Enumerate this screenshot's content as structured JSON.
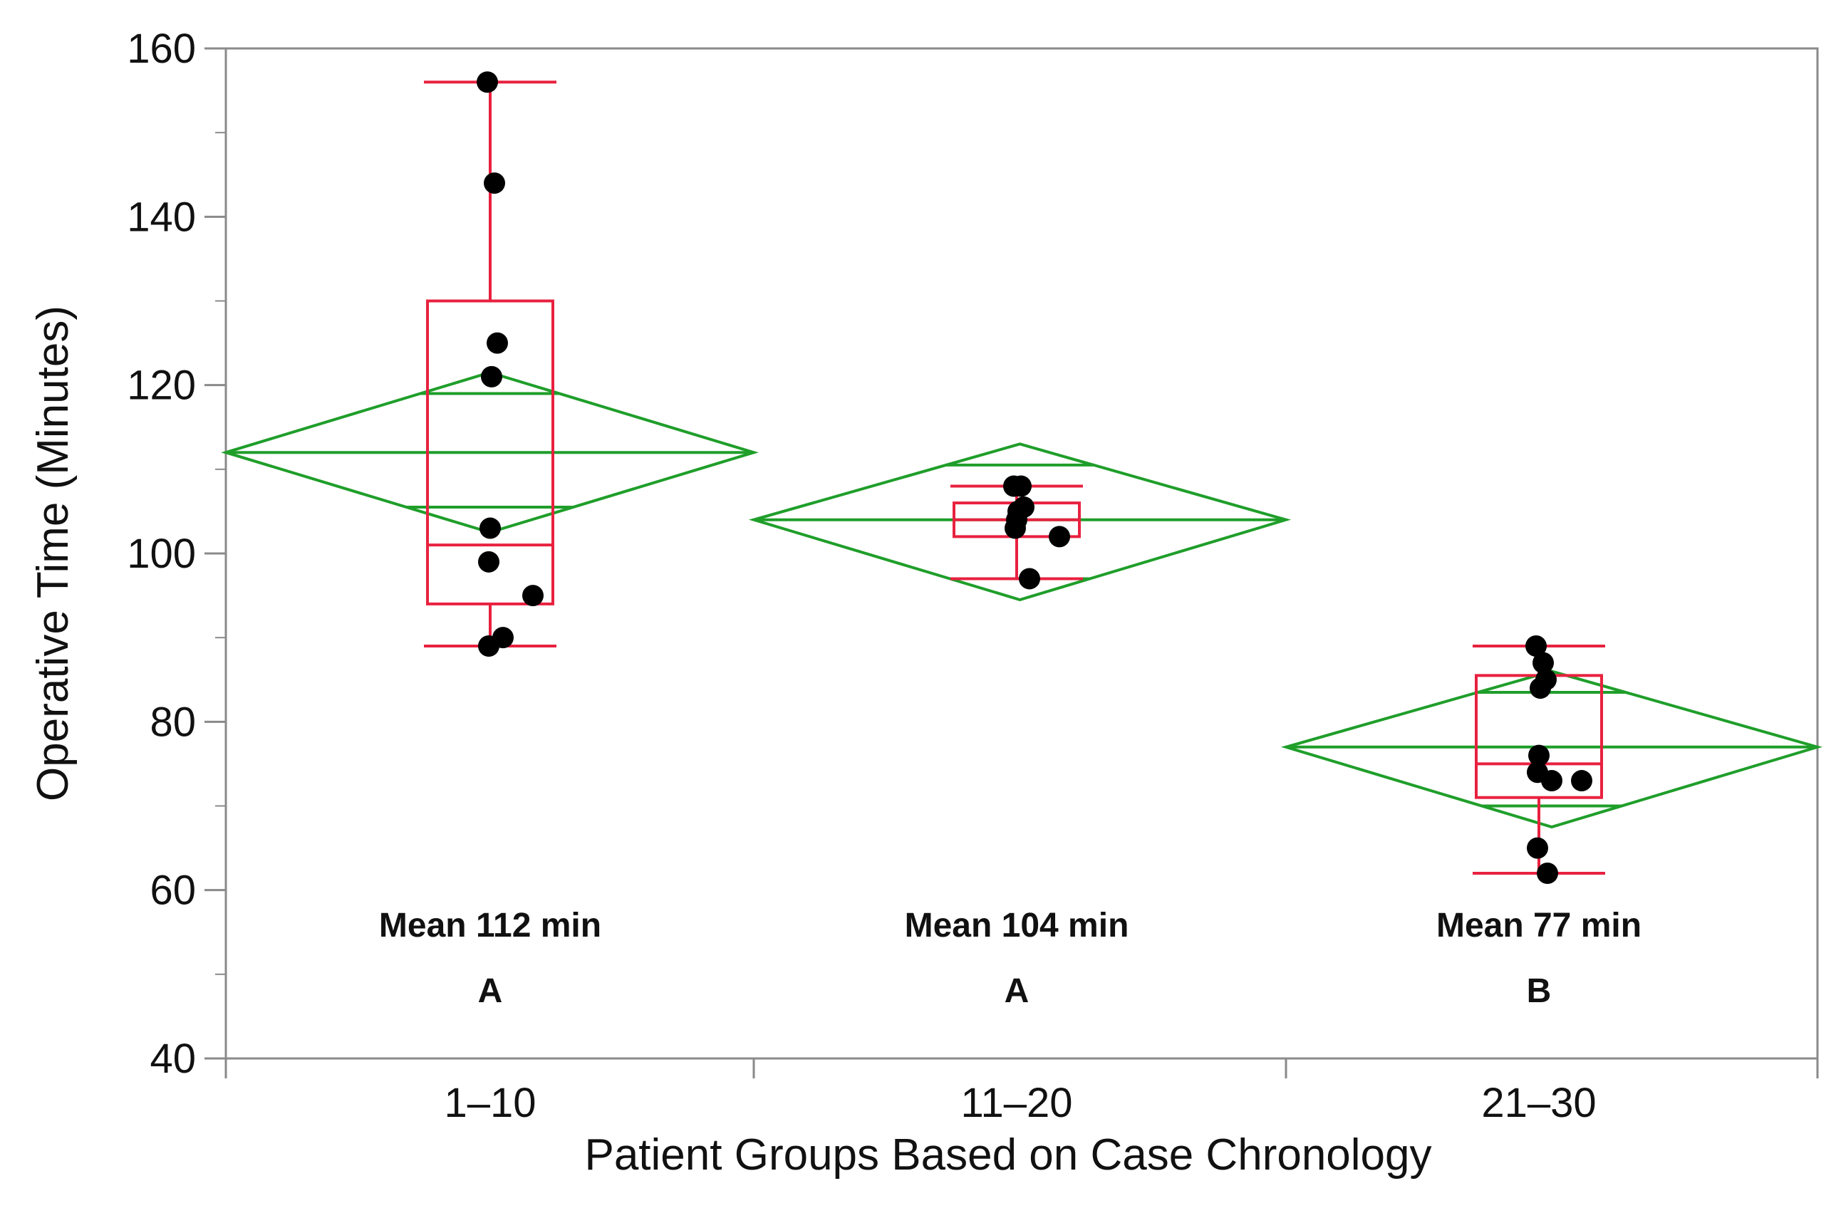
{
  "chart_data": {
    "type": "scatter",
    "subtype": "one-way ANOVA plot with box plots and means diamonds",
    "title": "",
    "xlabel": "Patient Groups Based on Case Chronology",
    "ylabel": "Operative Time (Minutes)",
    "ylim": [
      40,
      160
    ],
    "yticks": [
      40,
      60,
      80,
      100,
      120,
      140,
      160
    ],
    "grid": false,
    "categories": [
      "1–10",
      "11–20",
      "21–30"
    ],
    "colors": {
      "box": "#e8213f",
      "diamond": "#1f9e2a",
      "points": "#000000",
      "axis": "#8a8a8a"
    },
    "groups": [
      {
        "category": "1–10",
        "points": [
          156,
          144,
          125,
          121,
          103,
          99,
          95,
          90,
          89
        ],
        "box": {
          "whisker_low": 89,
          "q1": 94,
          "median": 101,
          "q3": 130,
          "whisker_high": 156
        },
        "diamond": {
          "mean": 112,
          "ci_low": 102.5,
          "ci_high": 121.5,
          "overlap_low": 105.5,
          "overlap_high": 119
        },
        "mean_label": "Mean 112 min",
        "letter": "A"
      },
      {
        "category": "11–20",
        "points": [
          108,
          108,
          105.5,
          105,
          104,
          103,
          102,
          97
        ],
        "box": {
          "whisker_low": 97,
          "q1": 102,
          "median": 104,
          "q3": 106,
          "whisker_high": 108
        },
        "diamond": {
          "mean": 104,
          "ci_low": 94.5,
          "ci_high": 113,
          "overlap_low": 97,
          "overlap_high": 110.5
        },
        "mean_label": "Mean 104 min",
        "letter": "A"
      },
      {
        "category": "21–30",
        "points": [
          89,
          87,
          85,
          84,
          76,
          74,
          73,
          73,
          65,
          62
        ],
        "box": {
          "whisker_low": 62,
          "q1": 71,
          "median": 75,
          "q3": 85.5,
          "whisker_high": 89
        },
        "diamond": {
          "mean": 77,
          "ci_low": 67.5,
          "ci_high": 86,
          "overlap_low": 70,
          "overlap_high": 83.5
        },
        "mean_label": "Mean 77 min",
        "letter": "B"
      }
    ]
  }
}
